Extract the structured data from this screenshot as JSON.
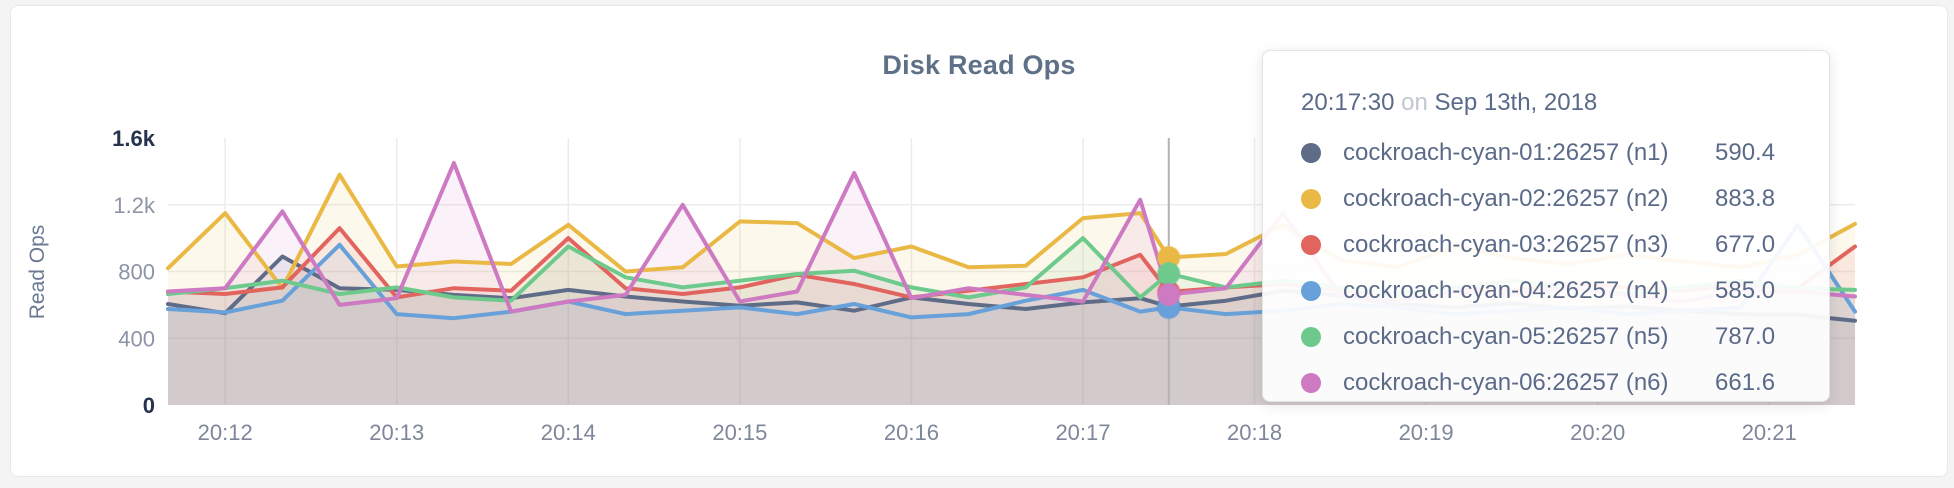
{
  "chart": {
    "title": "Disk Read Ops",
    "y_axis_label": "Read Ops",
    "y_ticks": [
      {
        "label": "1.6k",
        "value": 1600,
        "strong": true,
        "gridline": false
      },
      {
        "label": "1.2k",
        "value": 1200,
        "strong": false,
        "gridline": true
      },
      {
        "label": "800",
        "value": 800,
        "strong": false,
        "gridline": true
      },
      {
        "label": "400",
        "value": 400,
        "strong": false,
        "gridline": true
      },
      {
        "label": "0",
        "value": 0,
        "strong": true,
        "gridline": false
      }
    ],
    "x_ticks": [
      "20:12",
      "20:13",
      "20:14",
      "20:15",
      "20:16",
      "20:17",
      "20:18",
      "20:19",
      "20:20",
      "20:21"
    ],
    "grid_color": "#ececec",
    "guideline_color": "#b3b3b3"
  },
  "tooltip": {
    "time": "20:17:30",
    "on_word": "on",
    "date": "Sep 13th, 2018",
    "rows": [
      {
        "name": "cockroach-cyan-01:26257 (n1)",
        "value": "590.4",
        "color": "#5f6c87"
      },
      {
        "name": "cockroach-cyan-02:26257 (n2)",
        "value": "883.8",
        "color": "#eab945"
      },
      {
        "name": "cockroach-cyan-03:26257 (n3)",
        "value": "677.0",
        "color": "#e2645f"
      },
      {
        "name": "cockroach-cyan-04:26257 (n4)",
        "value": "585.0",
        "color": "#68a1d9"
      },
      {
        "name": "cockroach-cyan-05:26257 (n5)",
        "value": "787.0",
        "color": "#6dca8c"
      },
      {
        "name": "cockroach-cyan-06:26257 (n6)",
        "value": "661.6",
        "color": "#cd7ac3"
      }
    ]
  },
  "chart_data": {
    "type": "line",
    "title": "Disk Read Ops",
    "xlabel": "",
    "ylabel": "Read Ops",
    "ylim": [
      0,
      1600
    ],
    "grid": true,
    "legend_position": "tooltip",
    "hover_time": "20:17:30",
    "x": [
      "20:11:40",
      "20:12:00",
      "20:12:20",
      "20:12:40",
      "20:13:00",
      "20:13:20",
      "20:13:40",
      "20:14:00",
      "20:14:20",
      "20:14:40",
      "20:15:00",
      "20:15:20",
      "20:15:40",
      "20:16:00",
      "20:16:20",
      "20:16:40",
      "20:17:00",
      "20:17:20",
      "20:17:30",
      "20:17:50",
      "20:18:10",
      "20:18:30",
      "20:18:50",
      "20:19:10",
      "20:19:30",
      "20:19:50",
      "20:20:10",
      "20:20:30",
      "20:20:50",
      "20:21:10",
      "20:21:30"
    ],
    "series": [
      {
        "name": "cockroach-cyan-01:26257 (n1)",
        "color": "#5f6c87",
        "values": [
          605,
          550,
          890,
          700,
          690,
          660,
          640,
          690,
          650,
          620,
          595,
          615,
          565,
          645,
          605,
          575,
          615,
          640,
          590.4,
          625,
          685,
          655,
          605,
          585,
          610,
          575,
          590,
          565,
          545,
          540,
          505
        ]
      },
      {
        "name": "cockroach-cyan-02:26257 (n2)",
        "color": "#eab945",
        "values": [
          820,
          1150,
          700,
          1380,
          830,
          860,
          845,
          1080,
          800,
          825,
          1100,
          1090,
          880,
          950,
          825,
          835,
          1120,
          1150,
          883.8,
          905,
          1080,
          870,
          825,
          950,
          880,
          845,
          900,
          860,
          825,
          900,
          1085
        ]
      },
      {
        "name": "cockroach-cyan-03:26257 (n3)",
        "color": "#e2645f",
        "values": [
          680,
          665,
          705,
          1060,
          645,
          700,
          685,
          1000,
          700,
          665,
          705,
          780,
          725,
          645,
          685,
          725,
          765,
          900,
          677,
          705,
          725,
          685,
          665,
          705,
          685,
          725,
          705,
          685,
          725,
          700,
          950
        ]
      },
      {
        "name": "cockroach-cyan-04:26257 (n4)",
        "color": "#68a1d9",
        "values": [
          575,
          555,
          625,
          960,
          545,
          520,
          560,
          620,
          545,
          565,
          585,
          545,
          605,
          525,
          545,
          625,
          690,
          560,
          585,
          545,
          565,
          605,
          585,
          545,
          565,
          585,
          545,
          565,
          585,
          1080,
          560
        ]
      },
      {
        "name": "cockroach-cyan-05:26257 (n5)",
        "color": "#6dca8c",
        "values": [
          665,
          700,
          745,
          665,
          705,
          645,
          625,
          950,
          765,
          705,
          745,
          785,
          805,
          705,
          645,
          705,
          1000,
          645,
          787,
          705,
          745,
          705,
          665,
          705,
          745,
          705,
          665,
          705,
          745,
          700,
          690
        ]
      },
      {
        "name": "cockroach-cyan-06:26257 (n6)",
        "color": "#cd7ac3",
        "values": [
          680,
          700,
          1160,
          600,
          640,
          1450,
          560,
          620,
          660,
          1200,
          620,
          680,
          1390,
          640,
          700,
          660,
          620,
          1230,
          661.6,
          700,
          1150,
          660,
          620,
          680,
          660,
          700,
          660,
          620,
          680,
          680,
          650
        ]
      }
    ]
  }
}
